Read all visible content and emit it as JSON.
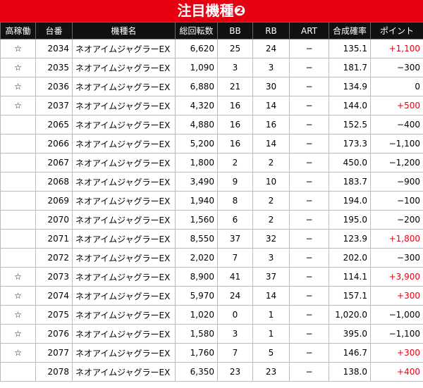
{
  "header": {
    "title": "注目機種❷"
  },
  "table": {
    "columns": [
      "高稼働",
      "台番",
      "機種名",
      "総回転数",
      "BB",
      "RB",
      "ART",
      "合成確率",
      "ポイント"
    ],
    "rows": [
      [
        "☆",
        "2034",
        "ネオアイムジャグラーEX",
        "6,620",
        "25",
        "24",
        "−",
        "135.1",
        "+1,100"
      ],
      [
        "☆",
        "2035",
        "ネオアイムジャグラーEX",
        "1,090",
        "3",
        "3",
        "−",
        "181.7",
        "−300"
      ],
      [
        "☆",
        "2036",
        "ネオアイムジャグラーEX",
        "6,880",
        "21",
        "30",
        "−",
        "134.9",
        "0"
      ],
      [
        "☆",
        "2037",
        "ネオアイムジャグラーEX",
        "4,320",
        "16",
        "14",
        "−",
        "144.0",
        "+500"
      ],
      [
        "",
        "2065",
        "ネオアイムジャグラーEX",
        "4,880",
        "16",
        "16",
        "−",
        "152.5",
        "−400"
      ],
      [
        "",
        "2066",
        "ネオアイムジャグラーEX",
        "5,200",
        "16",
        "14",
        "−",
        "173.3",
        "−1,100"
      ],
      [
        "",
        "2067",
        "ネオアイムジャグラーEX",
        "1,800",
        "2",
        "2",
        "−",
        "450.0",
        "−1,200"
      ],
      [
        "",
        "2068",
        "ネオアイムジャグラーEX",
        "3,490",
        "9",
        "10",
        "−",
        "183.7",
        "−900"
      ],
      [
        "",
        "2069",
        "ネオアイムジャグラーEX",
        "1,940",
        "8",
        "2",
        "−",
        "194.0",
        "−100"
      ],
      [
        "",
        "2070",
        "ネオアイムジャグラーEX",
        "1,560",
        "6",
        "2",
        "−",
        "195.0",
        "−200"
      ],
      [
        "",
        "2071",
        "ネオアイムジャグラーEX",
        "8,550",
        "37",
        "32",
        "−",
        "123.9",
        "+1,800"
      ],
      [
        "",
        "2072",
        "ネオアイムジャグラーEX",
        "2,020",
        "7",
        "3",
        "−",
        "202.0",
        "−300"
      ],
      [
        "☆",
        "2073",
        "ネオアイムジャグラーEX",
        "8,900",
        "41",
        "37",
        "−",
        "114.1",
        "+3,900"
      ],
      [
        "☆",
        "2074",
        "ネオアイムジャグラーEX",
        "5,970",
        "24",
        "14",
        "−",
        "157.1",
        "+300"
      ],
      [
        "☆",
        "2075",
        "ネオアイムジャグラーEX",
        "1,020",
        "0",
        "1",
        "−",
        "1,020.0",
        "−1,000"
      ],
      [
        "☆",
        "2076",
        "ネオアイムジャグラーEX",
        "1,580",
        "3",
        "1",
        "−",
        "395.0",
        "−1,100"
      ],
      [
        "☆",
        "2077",
        "ネオアイムジャグラーEX",
        "1,760",
        "7",
        "5",
        "−",
        "146.7",
        "+300"
      ],
      [
        "",
        "2078",
        "ネオアイムジャグラーEX",
        "6,350",
        "23",
        "23",
        "−",
        "138.0",
        "+400"
      ]
    ]
  }
}
